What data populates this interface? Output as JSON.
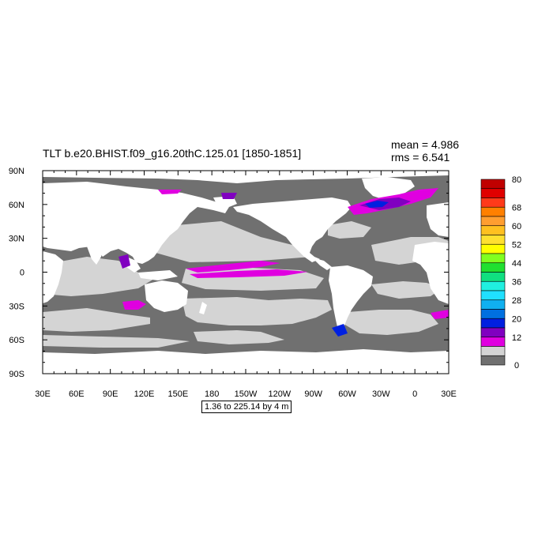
{
  "title": "TLT b.e20.BHIST.f09_g16.20thC.125.01 [1850-1851]",
  "stats": {
    "mean": "mean = 4.986",
    "rms": "rms = 6.541"
  },
  "range_label": "1.36 to 225.14 by 4 m",
  "axes": {
    "x_ticks": [
      "30E",
      "60E",
      "90E",
      "120E",
      "150E",
      "180",
      "150W",
      "120W",
      "90W",
      "60W",
      "30W",
      "0",
      "30E"
    ],
    "y_ticks": [
      "90N",
      "60N",
      "30N",
      "0",
      "30S",
      "60S",
      "90S"
    ]
  },
  "colorbar": {
    "labels": [
      "80",
      "68",
      "60",
      "52",
      "44",
      "36",
      "28",
      "20",
      "12",
      "0"
    ],
    "colors": [
      "#c00000",
      "#e00000",
      "#ff3a1a",
      "#ff8000",
      "#ff9e30",
      "#ffc020",
      "#ffe030",
      "#ffff00",
      "#80ff20",
      "#20e030",
      "#10e080",
      "#20f0e0",
      "#20e0ff",
      "#10b0f0",
      "#0070e0",
      "#0020e0",
      "#8000c0",
      "#e000e0",
      "#d4d4d4",
      "#707070"
    ]
  },
  "map_colors": {
    "land": "#ffffff",
    "ocean_shallow": "#707070",
    "ocean_mid": "#d4d4d4",
    "magenta": "#e000e0",
    "purple": "#8000c0",
    "blue": "#0020e0"
  }
}
